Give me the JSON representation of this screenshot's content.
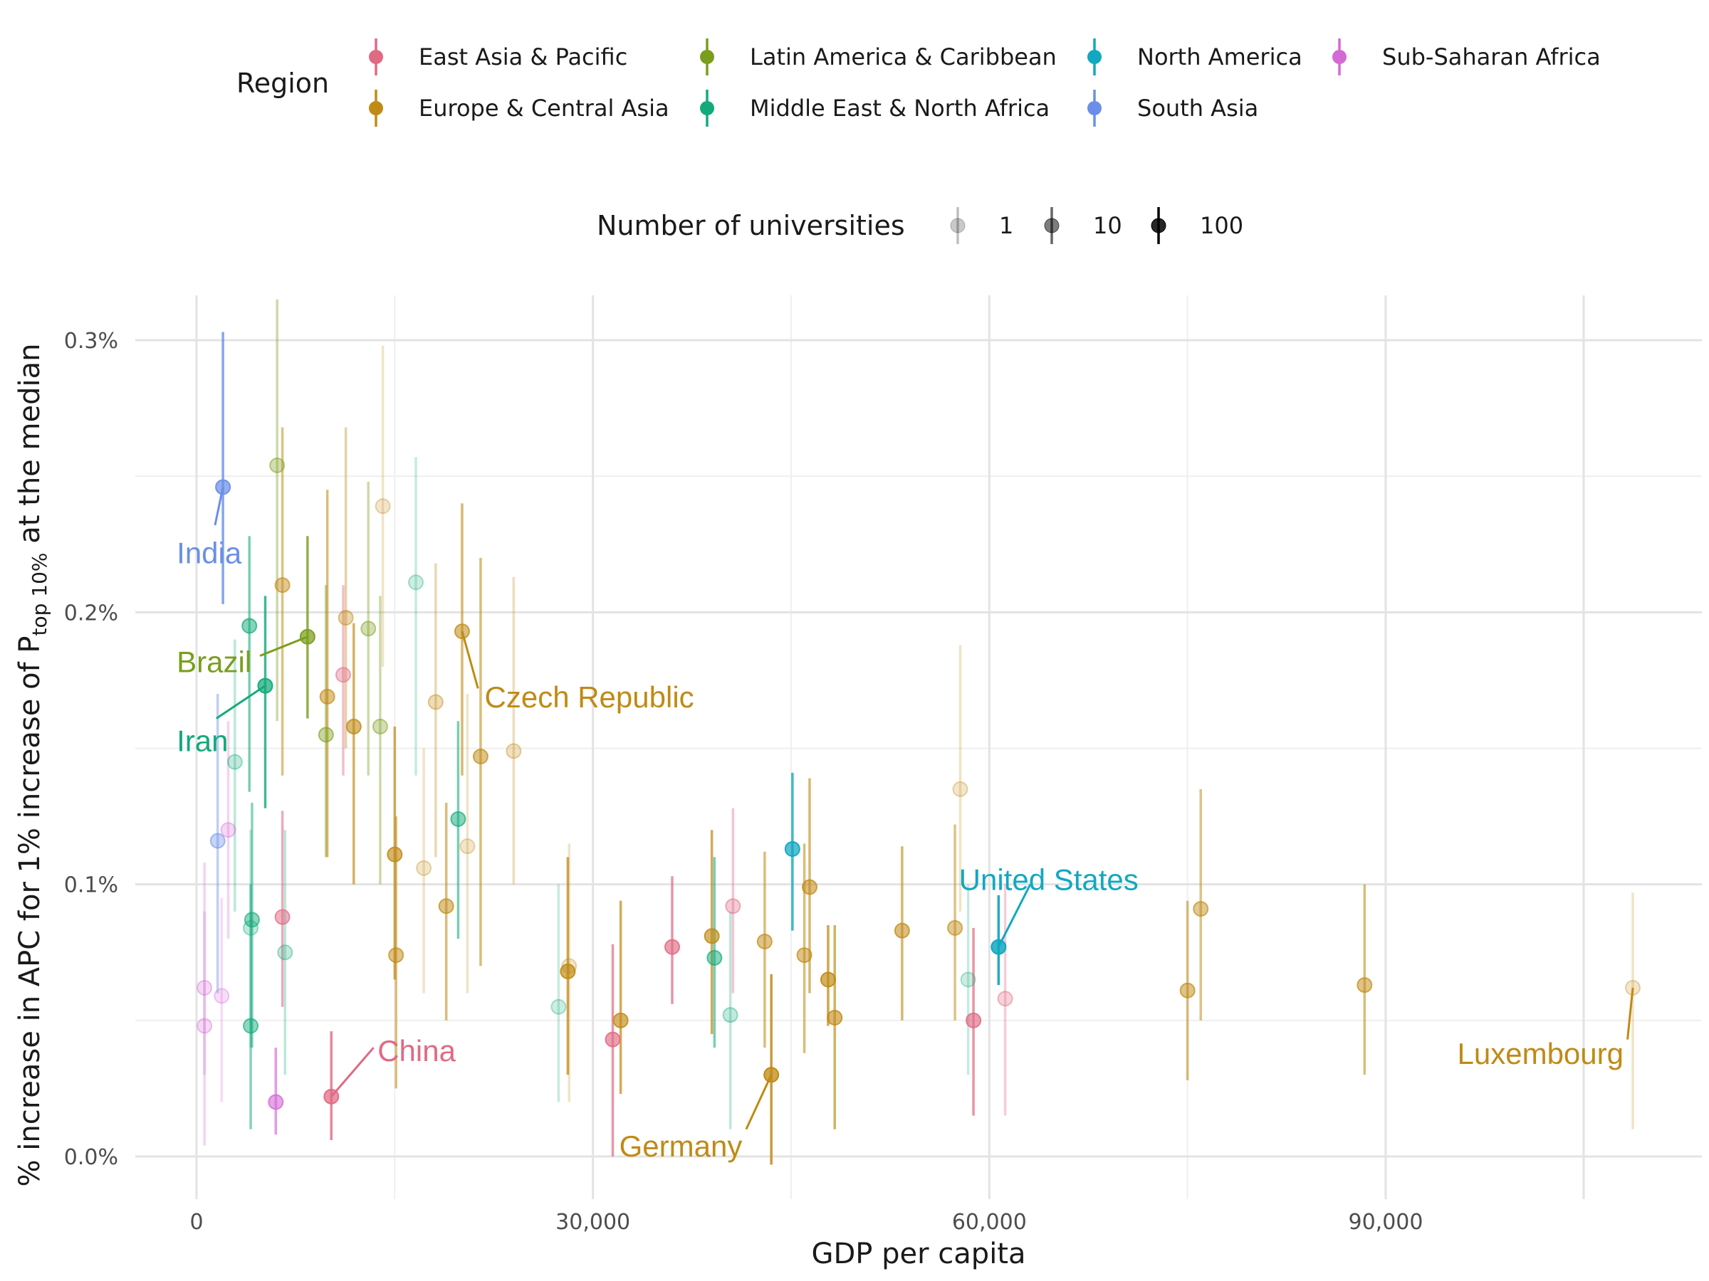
{
  "chart_data": {
    "type": "scatter",
    "xlabel": "GDP per capita",
    "ylabel_prefix": "% increase in APC for 1% increase of P",
    "ylabel_sub": "top 10%",
    "ylabel_suffix": " at the median",
    "xlim": [
      -2000,
      113000
    ],
    "ylim": [
      -0.0015,
      0.00315
    ],
    "x_ticks": [
      0,
      30000,
      60000,
      90000
    ],
    "x_tick_labels": [
      "0",
      "30,000",
      "60,000",
      "90,000"
    ],
    "y_ticks": [
      0,
      0.001,
      0.002,
      0.003
    ],
    "y_tick_labels": [
      "0.0%",
      "0.1%",
      "0.2%",
      "0.3%"
    ],
    "grid": true,
    "legend_region": {
      "title": "Region",
      "position": "top",
      "entries": [
        {
          "name": "East Asia & Pacific",
          "color": "#E06A84"
        },
        {
          "name": "Europe & Central Asia",
          "color": "#C08A15"
        },
        {
          "name": "Latin America & Caribbean",
          "color": "#7A9E1C"
        },
        {
          "name": "Middle East & North Africa",
          "color": "#12AA7A"
        },
        {
          "name": "North America",
          "color": "#12A8C0"
        },
        {
          "name": "South Asia",
          "color": "#6B8FE8"
        },
        {
          "name": "Sub-Saharan Africa",
          "color": "#D46AD4"
        }
      ]
    },
    "legend_size": {
      "title": "Number of universities",
      "position": "top",
      "entries": [
        {
          "label": "1",
          "opacity": 0.25
        },
        {
          "label": "10",
          "opacity": 0.6
        },
        {
          "label": "100",
          "opacity": 1.0
        }
      ]
    },
    "points": [
      {
        "x": 2000,
        "y": 0.00246,
        "lo": 0.00203,
        "hi": 0.00303,
        "region": 5,
        "o": 0.85
      },
      {
        "x": 1600,
        "y": 0.00116,
        "lo": 0.0006,
        "hi": 0.0017,
        "region": 5,
        "o": 0.45
      },
      {
        "x": 6100,
        "y": 0.00254,
        "lo": 0.0016,
        "hi": 0.00315,
        "region": 2,
        "o": 0.4
      },
      {
        "x": 8400,
        "y": 0.00191,
        "lo": 0.00161,
        "hi": 0.00228,
        "region": 2,
        "o": 0.85
      },
      {
        "x": 9800,
        "y": 0.00155,
        "lo": 0.0011,
        "hi": 0.0021,
        "region": 2,
        "o": 0.5
      },
      {
        "x": 13000,
        "y": 0.00194,
        "lo": 0.0014,
        "hi": 0.00248,
        "region": 2,
        "o": 0.4
      },
      {
        "x": 13900,
        "y": 0.00158,
        "lo": 0.001,
        "hi": 0.00206,
        "region": 2,
        "o": 0.4
      },
      {
        "x": 5200,
        "y": 0.00173,
        "lo": 0.00128,
        "hi": 0.00206,
        "region": 3,
        "o": 0.85
      },
      {
        "x": 4000,
        "y": 0.00195,
        "lo": 0.00134,
        "hi": 0.00228,
        "region": 3,
        "o": 0.6
      },
      {
        "x": 4200,
        "y": 0.00087,
        "lo": 0.0004,
        "hi": 0.0013,
        "region": 3,
        "o": 0.55
      },
      {
        "x": 4100,
        "y": 0.00084,
        "lo": 0.0004,
        "hi": 0.0012,
        "region": 3,
        "o": 0.3
      },
      {
        "x": 4100,
        "y": 0.00048,
        "lo": 0.0001,
        "hi": 0.001,
        "region": 3,
        "o": 0.55
      },
      {
        "x": 2900,
        "y": 0.00145,
        "lo": 0.0009,
        "hi": 0.0019,
        "region": 3,
        "o": 0.3
      },
      {
        "x": 6700,
        "y": 0.00075,
        "lo": 0.0003,
        "hi": 0.0012,
        "region": 3,
        "o": 0.3
      },
      {
        "x": 16600,
        "y": 0.00211,
        "lo": 0.0014,
        "hi": 0.00257,
        "region": 3,
        "o": 0.25
      },
      {
        "x": 19800,
        "y": 0.00124,
        "lo": 0.0008,
        "hi": 0.0016,
        "region": 3,
        "o": 0.6
      },
      {
        "x": 27400,
        "y": 0.00055,
        "lo": 0.0002,
        "hi": 0.001,
        "region": 3,
        "o": 0.25
      },
      {
        "x": 39200,
        "y": 0.00073,
        "lo": 0.0004,
        "hi": 0.0011,
        "region": 3,
        "o": 0.6
      },
      {
        "x": 40400,
        "y": 0.00052,
        "lo": 0.0001,
        "hi": 0.0009,
        "region": 3,
        "o": 0.3
      },
      {
        "x": 58400,
        "y": 0.00065,
        "lo": 0.0003,
        "hi": 0.001,
        "region": 3,
        "o": 0.25
      },
      {
        "x": 10200,
        "y": 0.00022,
        "lo": 6e-05,
        "hi": 0.00046,
        "region": 0,
        "o": 0.85
      },
      {
        "x": 6500,
        "y": 0.00088,
        "lo": 0.00055,
        "hi": 0.00127,
        "region": 0,
        "o": 0.6
      },
      {
        "x": 11100,
        "y": 0.00177,
        "lo": 0.0014,
        "hi": 0.0021,
        "region": 0,
        "o": 0.45
      },
      {
        "x": 31500,
        "y": 0.00043,
        "lo": 0.0,
        "hi": 0.00078,
        "region": 0,
        "o": 0.75
      },
      {
        "x": 36000,
        "y": 0.00077,
        "lo": 0.00056,
        "hi": 0.00103,
        "region": 0,
        "o": 0.75
      },
      {
        "x": 40600,
        "y": 0.00092,
        "lo": 0.0006,
        "hi": 0.00128,
        "region": 0,
        "o": 0.4
      },
      {
        "x": 58800,
        "y": 0.0005,
        "lo": 0.00015,
        "hi": 0.00084,
        "region": 0,
        "o": 0.75
      },
      {
        "x": 61200,
        "y": 0.00058,
        "lo": 0.00015,
        "hi": 0.001,
        "region": 0,
        "o": 0.35
      },
      {
        "x": 45100,
        "y": 0.00113,
        "lo": 0.00083,
        "hi": 0.00141,
        "region": 4,
        "o": 0.85
      },
      {
        "x": 60700,
        "y": 0.00077,
        "lo": 0.00063,
        "hi": 0.00096,
        "region": 4,
        "o": 1.0
      },
      {
        "x": 2400,
        "y": 0.0012,
        "lo": 0.0008,
        "hi": 0.0016,
        "region": 6,
        "o": 0.3
      },
      {
        "x": 600,
        "y": 0.00062,
        "lo": 0.0003,
        "hi": 0.00108,
        "region": 6,
        "o": 0.3
      },
      {
        "x": 600,
        "y": 0.00048,
        "lo": 4e-05,
        "hi": 0.0009,
        "region": 6,
        "o": 0.3
      },
      {
        "x": 1900,
        "y": 0.00059,
        "lo": 0.0002,
        "hi": 0.00095,
        "region": 6,
        "o": 0.25
      },
      {
        "x": 6000,
        "y": 0.0002,
        "lo": 8e-05,
        "hi": 0.0004,
        "region": 6,
        "o": 0.7
      },
      {
        "x": 6500,
        "y": 0.0021,
        "lo": 0.0014,
        "hi": 0.00268,
        "region": 1,
        "o": 0.55
      },
      {
        "x": 9900,
        "y": 0.00169,
        "lo": 0.0011,
        "hi": 0.00245,
        "region": 1,
        "o": 0.6
      },
      {
        "x": 11300,
        "y": 0.00198,
        "lo": 0.0015,
        "hi": 0.00268,
        "region": 1,
        "o": 0.4
      },
      {
        "x": 11900,
        "y": 0.00158,
        "lo": 0.001,
        "hi": 0.00196,
        "region": 1,
        "o": 0.7
      },
      {
        "x": 14100,
        "y": 0.00239,
        "lo": 0.0018,
        "hi": 0.00298,
        "region": 1,
        "o": 0.25
      },
      {
        "x": 15000,
        "y": 0.00111,
        "lo": 0.00065,
        "hi": 0.00158,
        "region": 1,
        "o": 0.75
      },
      {
        "x": 15100,
        "y": 0.00074,
        "lo": 0.00025,
        "hi": 0.00125,
        "region": 1,
        "o": 0.6
      },
      {
        "x": 17200,
        "y": 0.00106,
        "lo": 0.0006,
        "hi": 0.0015,
        "region": 1,
        "o": 0.25
      },
      {
        "x": 18100,
        "y": 0.00167,
        "lo": 0.0011,
        "hi": 0.00218,
        "region": 1,
        "o": 0.35
      },
      {
        "x": 18900,
        "y": 0.00092,
        "lo": 0.0005,
        "hi": 0.0013,
        "region": 1,
        "o": 0.6
      },
      {
        "x": 20100,
        "y": 0.00193,
        "lo": 0.0014,
        "hi": 0.0024,
        "region": 1,
        "o": 0.65
      },
      {
        "x": 20500,
        "y": 0.00114,
        "lo": 0.0006,
        "hi": 0.0017,
        "region": 1,
        "o": 0.25
      },
      {
        "x": 21500,
        "y": 0.00147,
        "lo": 0.0007,
        "hi": 0.0022,
        "region": 1,
        "o": 0.6
      },
      {
        "x": 24000,
        "y": 0.00149,
        "lo": 0.001,
        "hi": 0.00213,
        "region": 1,
        "o": 0.3
      },
      {
        "x": 28100,
        "y": 0.00068,
        "lo": 0.0003,
        "hi": 0.0011,
        "region": 1,
        "o": 0.8
      },
      {
        "x": 28200,
        "y": 0.0007,
        "lo": 0.0002,
        "hi": 0.00115,
        "region": 1,
        "o": 0.25
      },
      {
        "x": 32100,
        "y": 0.0005,
        "lo": 0.00023,
        "hi": 0.00094,
        "region": 1,
        "o": 0.75
      },
      {
        "x": 39000,
        "y": 0.00081,
        "lo": 0.00045,
        "hi": 0.0012,
        "region": 1,
        "o": 0.75
      },
      {
        "x": 43000,
        "y": 0.00079,
        "lo": 0.0004,
        "hi": 0.00112,
        "region": 1,
        "o": 0.6
      },
      {
        "x": 43500,
        "y": 0.0003,
        "lo": -3e-05,
        "hi": 0.00067,
        "region": 1,
        "o": 0.9
      },
      {
        "x": 46000,
        "y": 0.00074,
        "lo": 0.00038,
        "hi": 0.00115,
        "region": 1,
        "o": 0.6
      },
      {
        "x": 46400,
        "y": 0.00099,
        "lo": 0.0006,
        "hi": 0.00139,
        "region": 1,
        "o": 0.65
      },
      {
        "x": 47800,
        "y": 0.00065,
        "lo": 0.00048,
        "hi": 0.00085,
        "region": 1,
        "o": 0.8
      },
      {
        "x": 48300,
        "y": 0.00051,
        "lo": 0.0001,
        "hi": 0.00085,
        "region": 1,
        "o": 0.7
      },
      {
        "x": 53400,
        "y": 0.00083,
        "lo": 0.0005,
        "hi": 0.00114,
        "region": 1,
        "o": 0.65
      },
      {
        "x": 57400,
        "y": 0.00084,
        "lo": 0.0005,
        "hi": 0.00122,
        "region": 1,
        "o": 0.55
      },
      {
        "x": 57800,
        "y": 0.00135,
        "lo": 0.0009,
        "hi": 0.00188,
        "region": 1,
        "o": 0.25
      },
      {
        "x": 75000,
        "y": 0.00061,
        "lo": 0.00028,
        "hi": 0.00094,
        "region": 1,
        "o": 0.6
      },
      {
        "x": 76000,
        "y": 0.00091,
        "lo": 0.0005,
        "hi": 0.00135,
        "region": 1,
        "o": 0.55
      },
      {
        "x": 88400,
        "y": 0.00063,
        "lo": 0.0003,
        "hi": 0.001,
        "region": 1,
        "o": 0.6
      },
      {
        "x": 108700,
        "y": 0.00062,
        "lo": 0.0001,
        "hi": 0.00097,
        "region": 1,
        "o": 0.25
      }
    ],
    "annotations": [
      {
        "text": "India",
        "region": 5,
        "px": [
          2000,
          0.00246
        ],
        "tx": -1500,
        "ty": 0.00218,
        "anchor": "start",
        "lx": 1400,
        "ly": 0.00232
      },
      {
        "text": "Brazil",
        "region": 2,
        "px": [
          8400,
          0.00191
        ],
        "tx": -1500,
        "ty": 0.00178,
        "anchor": "start",
        "lx": 4800,
        "ly": 0.00184
      },
      {
        "text": "Iran",
        "region": 3,
        "px": [
          5200,
          0.00173
        ],
        "tx": -1500,
        "ty": 0.00149,
        "anchor": "start",
        "lx": 1500,
        "ly": 0.00161
      },
      {
        "text": "Czech Republic",
        "region": 1,
        "px": [
          20100,
          0.00193
        ],
        "tx": 21800,
        "ty": 0.00165,
        "anchor": "start",
        "lx": 21300,
        "ly": 0.00172
      },
      {
        "text": "China",
        "region": 0,
        "px": [
          10200,
          0.00022
        ],
        "tx": 13700,
        "ty": 0.00035,
        "anchor": "start",
        "lx": 13400,
        "ly": 0.0004
      },
      {
        "text": "Germany",
        "region": 1,
        "px": [
          43500,
          0.0003
        ],
        "tx": 41300,
        "ty": 0.0,
        "anchor": "end",
        "lx": 41600,
        "ly": 0.0001
      },
      {
        "text": "United States",
        "region": 4,
        "px": [
          60700,
          0.00077
        ],
        "tx": 57700,
        "ty": 0.00098,
        "anchor": "start",
        "lx": 63100,
        "ly": 0.001
      },
      {
        "text": "Luxembourg",
        "region": 1,
        "px": [
          108700,
          0.00062
        ],
        "tx": 108000,
        "ty": 0.00034,
        "anchor": "end",
        "lx": 108300,
        "ly": 0.00043
      }
    ]
  }
}
